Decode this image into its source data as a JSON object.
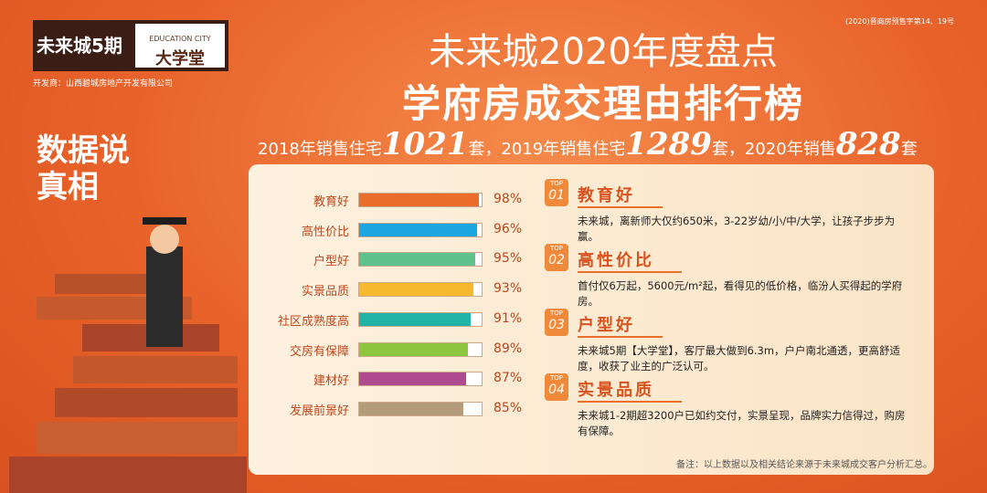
{
  "logo": {
    "brand": "未来城5期",
    "tag": "EDUCATION CITY",
    "name": "大学堂",
    "developer": "开发商：山西碧城房地产开发有限公司"
  },
  "permit": "(2020)晋商房预售字第14、19号",
  "title": "未来城2020年度盘点",
  "subtitle": "学府房成交理由排行榜",
  "sales": {
    "p1": "2018年销售住宅",
    "n1": 1021,
    "p2": "套，2019年销售住宅",
    "n2": 1289,
    "p3": "套，2020年销售",
    "n3": 828,
    "p4": "套"
  },
  "slogan": "数据说真相",
  "chart_data": {
    "type": "bar",
    "orientation": "horizontal",
    "categories": [
      "教育好",
      "高性价比",
      "户型好",
      "实景品质",
      "社区成熟度高",
      "交房有保障",
      "建材好",
      "发展前景好"
    ],
    "values": [
      98,
      96,
      95,
      93,
      91,
      89,
      87,
      85
    ],
    "value_labels": [
      "98%",
      "96%",
      "95%",
      "93%",
      "91%",
      "89%",
      "87%",
      "85%"
    ],
    "colors": [
      "#ea6d2c",
      "#1ba6e2",
      "#5fc28c",
      "#f6b82c",
      "#22b3a6",
      "#8dc63f",
      "#b04a8f",
      "#b39c7a"
    ],
    "xlim": [
      0,
      100
    ]
  },
  "reasons": [
    {
      "top": "TOP",
      "rank": "01",
      "title": "教育好",
      "text": "未来城，离新师大仅约650米，3-22岁幼/小/中/大学，让孩子步步为赢。"
    },
    {
      "top": "TOP",
      "rank": "02",
      "title": "高性价比",
      "text": "首付仅6万起，5600元/m²起，看得见的低价格，临汾人买得起的学府房。"
    },
    {
      "top": "TOP",
      "rank": "03",
      "title": "户型好",
      "text": "未来城5期【大学堂】，客厅最大做到6.3m，户户南北通透，更高舒适度，收获了业主的广泛认可。"
    },
    {
      "top": "TOP",
      "rank": "04",
      "title": "实景品质",
      "text": "未来城1-2期超3200户已如约交付，实景呈现，品牌实力信得过，购房有保障。"
    }
  ],
  "footnote": "备注：以上数据以及相关结论来源于未来城成交客户分析汇总。"
}
